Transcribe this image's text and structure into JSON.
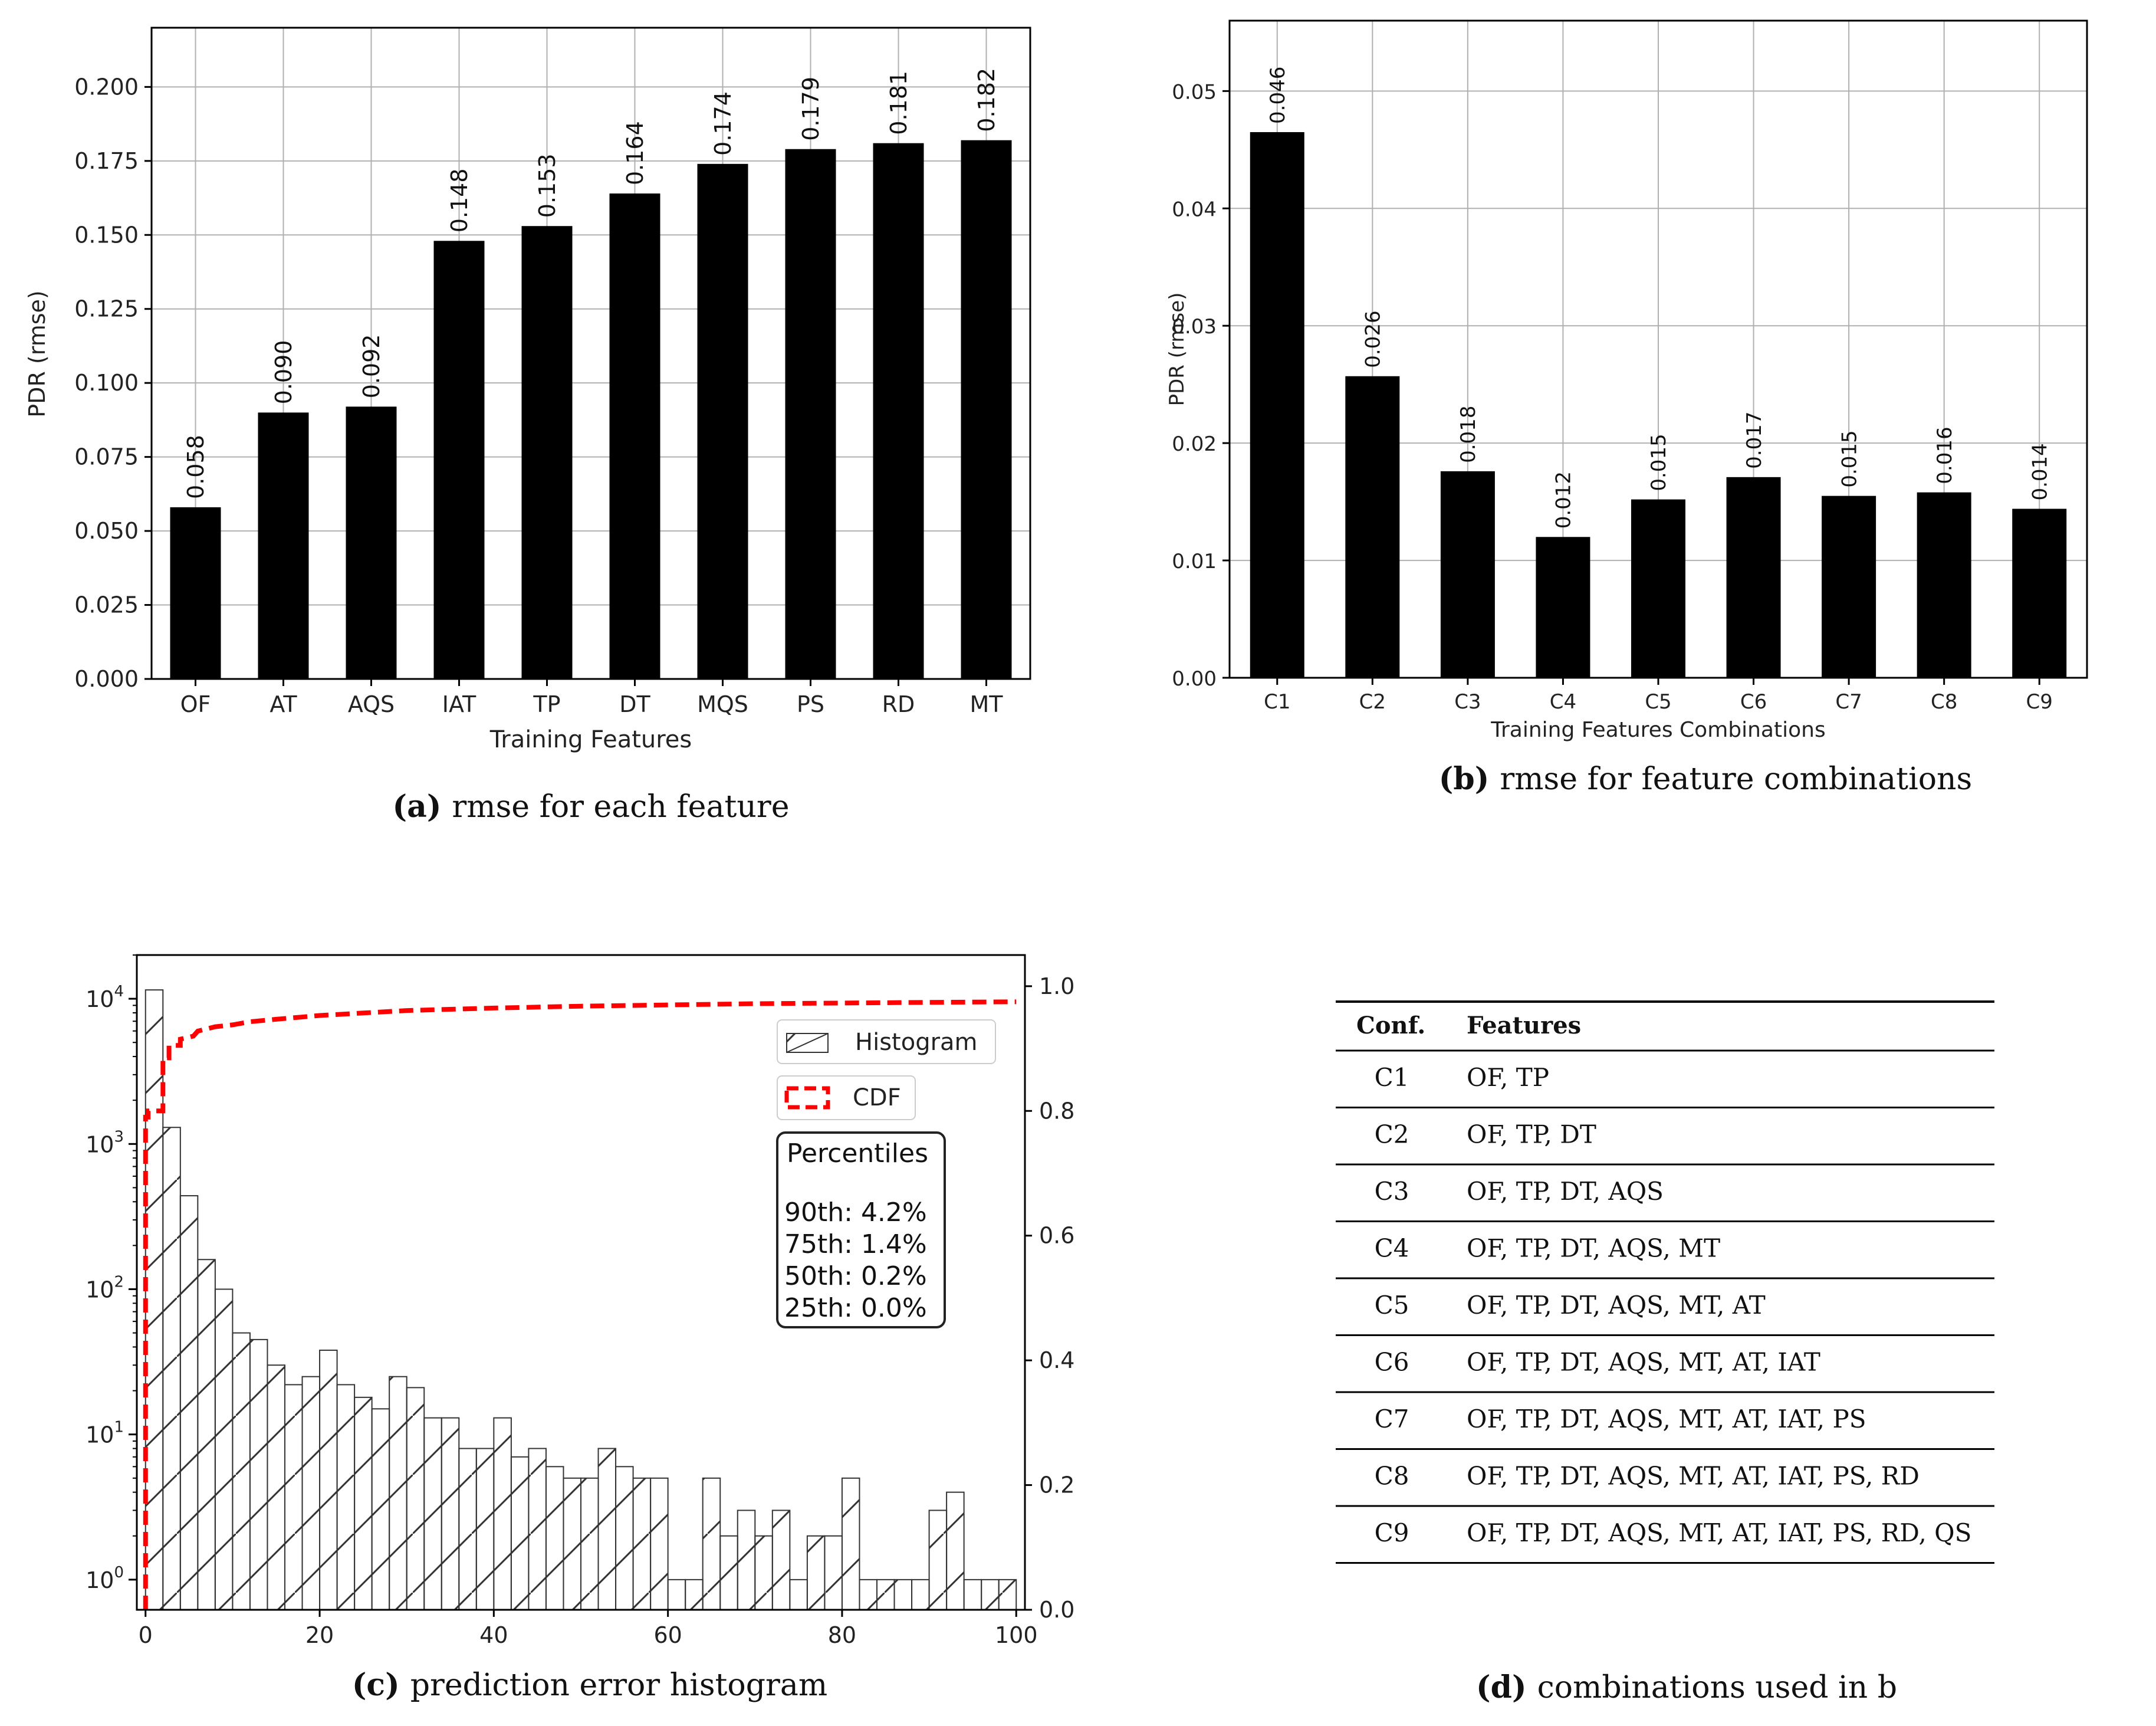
{
  "chart_data": [
    {
      "type": "bar",
      "panel": "a",
      "caption_label": "(a)",
      "caption_text": "rmse for each feature",
      "xlabel": "Training Features",
      "ylabel": "PDR (rmse)",
      "categories": [
        "OF",
        "AT",
        "AQS",
        "IAT",
        "TP",
        "DT",
        "MQS",
        "PS",
        "RD",
        "MT"
      ],
      "values": [
        0.058,
        0.09,
        0.092,
        0.148,
        0.153,
        0.164,
        0.174,
        0.179,
        0.181,
        0.182
      ],
      "value_labels": [
        "0.058",
        "0.090",
        "0.092",
        "0.148",
        "0.153",
        "0.164",
        "0.174",
        "0.179",
        "0.181",
        "0.182"
      ],
      "ylim": [
        0,
        0.22
      ],
      "yticks": [
        0.0,
        0.025,
        0.05,
        0.075,
        0.1,
        0.125,
        0.15,
        0.175,
        0.2
      ],
      "ytick_labels": [
        "0.000",
        "0.025",
        "0.050",
        "0.075",
        "0.100",
        "0.125",
        "0.150",
        "0.175",
        "0.200"
      ],
      "grid": true,
      "bar_color": "#000000"
    },
    {
      "type": "bar",
      "panel": "b",
      "caption_label": "(b)",
      "caption_text": "rmse for feature combinations",
      "xlabel": "Training Features Combinations",
      "ylabel": "PDR (rmse)",
      "categories": [
        "C1",
        "C2",
        "C3",
        "C4",
        "C5",
        "C6",
        "C7",
        "C8",
        "C9"
      ],
      "values": [
        0.0465,
        0.0257,
        0.0176,
        0.012,
        0.0152,
        0.0171,
        0.0155,
        0.0158,
        0.0144
      ],
      "value_labels": [
        "0.046",
        "0.026",
        "0.018",
        "0.012",
        "0.015",
        "0.017",
        "0.015",
        "0.016",
        "0.014"
      ],
      "ylim": [
        0,
        0.056
      ],
      "yticks": [
        0.0,
        0.01,
        0.02,
        0.03,
        0.04,
        0.05
      ],
      "ytick_labels": [
        "0.00",
        "0.01",
        "0.02",
        "0.03",
        "0.04",
        "0.05"
      ],
      "grid": true,
      "bar_color": "#000000"
    },
    {
      "type": "bar",
      "subtype": "histogram+cdf",
      "panel": "c",
      "caption_label": "(c)",
      "caption_text": "prediction error histogram",
      "x_range": [
        -1,
        101
      ],
      "xticks": [
        0,
        20,
        40,
        60,
        80,
        100
      ],
      "bin_width": 2,
      "bin_starts": [
        0,
        2,
        4,
        6,
        8,
        10,
        12,
        14,
        16,
        18,
        20,
        22,
        24,
        26,
        28,
        30,
        32,
        34,
        36,
        38,
        40,
        42,
        44,
        46,
        48,
        50,
        52,
        54,
        56,
        58,
        60,
        62,
        64,
        66,
        68,
        70,
        72,
        74,
        76,
        78,
        80,
        82,
        84,
        86,
        88,
        90,
        92,
        94,
        96,
        98
      ],
      "counts": [
        11500,
        1300,
        440,
        160,
        100,
        50,
        45,
        30,
        22,
        25,
        38,
        22,
        18,
        15,
        25,
        21,
        13,
        13,
        8,
        8,
        13,
        7,
        8,
        6,
        5,
        5,
        8,
        6,
        5,
        5,
        1,
        1,
        5,
        2,
        3,
        2,
        3,
        1,
        2,
        2,
        5,
        1,
        1,
        1,
        1,
        3,
        4,
        1,
        1,
        1
      ],
      "y_left_scale": "log",
      "y_left_lim": [
        0.62,
        20000
      ],
      "y_left_tick_labels": [
        {
          "base": "10",
          "exp": "0"
        },
        {
          "base": "10",
          "exp": "1"
        },
        {
          "base": "10",
          "exp": "2"
        },
        {
          "base": "10",
          "exp": "3"
        },
        {
          "base": "10",
          "exp": "4"
        }
      ],
      "y_right_lim": [
        0,
        1.05
      ],
      "y_right_ticks": [
        0.0,
        0.2,
        0.4,
        0.6,
        0.8,
        1.0
      ],
      "y_right_tick_labels": [
        "0.0",
        "0.2",
        "0.4",
        "0.6",
        "0.8",
        "1.0"
      ],
      "cdf": {
        "x": [
          0,
          0,
          0.3,
          0.3,
          2,
          2,
          2.7,
          2.7,
          4,
          4,
          5.5,
          6,
          8,
          10,
          12,
          15,
          20,
          25,
          30,
          40,
          50,
          60,
          70,
          80,
          90,
          100
        ],
        "y": [
          0,
          0.79,
          0.79,
          0.8,
          0.8,
          0.885,
          0.885,
          0.905,
          0.905,
          0.915,
          0.92,
          0.928,
          0.935,
          0.938,
          0.943,
          0.947,
          0.953,
          0.957,
          0.961,
          0.965,
          0.968,
          0.97,
          0.972,
          0.973,
          0.974,
          0.975
        ],
        "color": "#ff0000"
      },
      "legend": {
        "histogram": "Histogram",
        "cdf": "CDF"
      },
      "percentiles": {
        "title": "Percentiles",
        "rows": [
          "90th: 4.2%",
          "75th: 1.4%",
          "50th: 0.2%",
          "25th: 0.0%"
        ]
      }
    }
  ],
  "table_d": {
    "caption_label": "(d)",
    "caption_text": "combinations used in b",
    "headers": {
      "conf": "Conf.",
      "features": "Features"
    },
    "rows": [
      {
        "conf": "C1",
        "features": "OF, TP"
      },
      {
        "conf": "C2",
        "features": "OF, TP, DT"
      },
      {
        "conf": "C3",
        "features": "OF, TP, DT, AQS"
      },
      {
        "conf": "C4",
        "features": "OF, TP, DT, AQS, MT"
      },
      {
        "conf": "C5",
        "features": "OF, TP, DT, AQS, MT, AT"
      },
      {
        "conf": "C6",
        "features": "OF, TP, DT, AQS, MT, AT, IAT"
      },
      {
        "conf": "C7",
        "features": "OF, TP, DT, AQS, MT, AT, IAT, PS"
      },
      {
        "conf": "C8",
        "features": "OF, TP, DT, AQS, MT, AT, IAT, PS, RD"
      },
      {
        "conf": "C9",
        "features": "OF, TP, DT, AQS, MT, AT, IAT, PS, RD, QS"
      }
    ]
  }
}
